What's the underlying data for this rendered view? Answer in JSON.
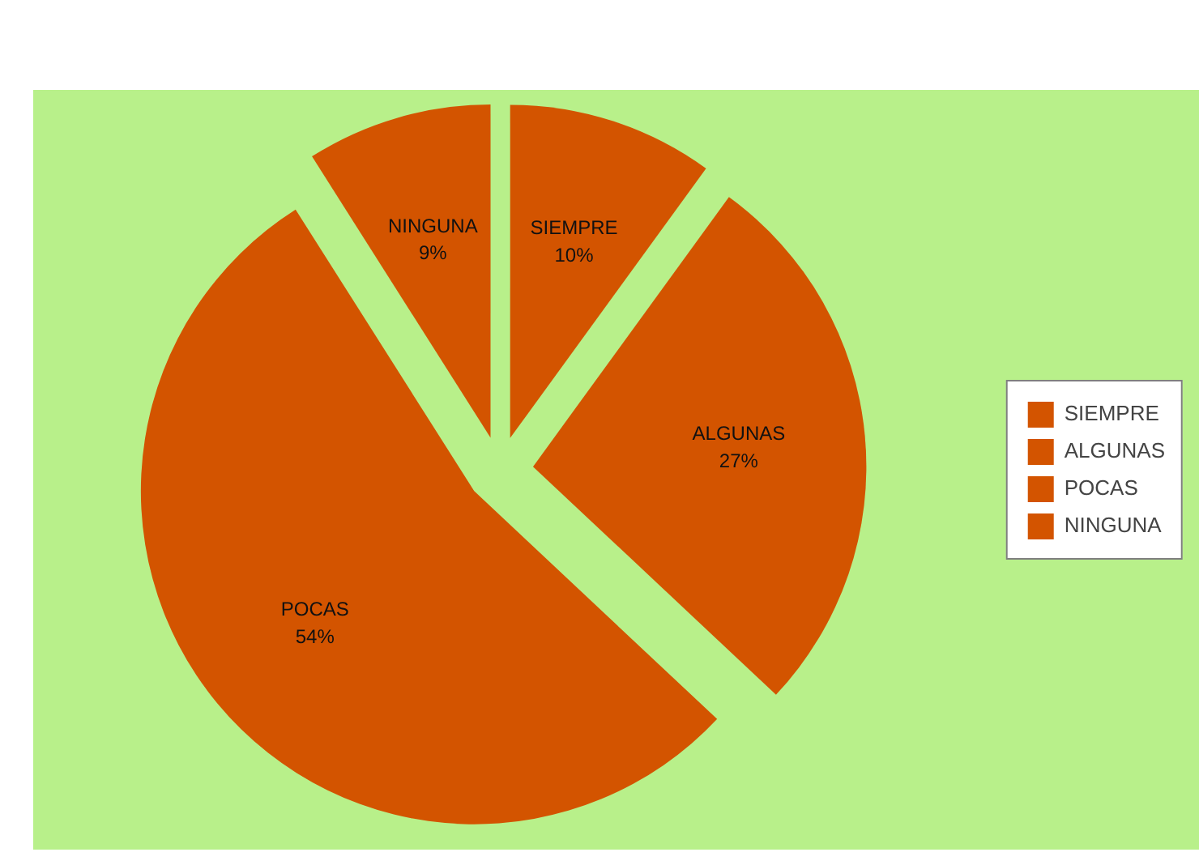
{
  "chart_data": {
    "type": "pie",
    "categories": [
      "SIEMPRE",
      "ALGUNAS",
      "POCAS",
      "NINGUNA"
    ],
    "values": [
      10,
      27,
      54,
      9
    ],
    "value_labels": [
      "10%",
      "27%",
      "54%",
      "9%"
    ],
    "colors": [
      "#d35400",
      "#d35400",
      "#d35400",
      "#d35400"
    ],
    "legend": "right"
  }
}
